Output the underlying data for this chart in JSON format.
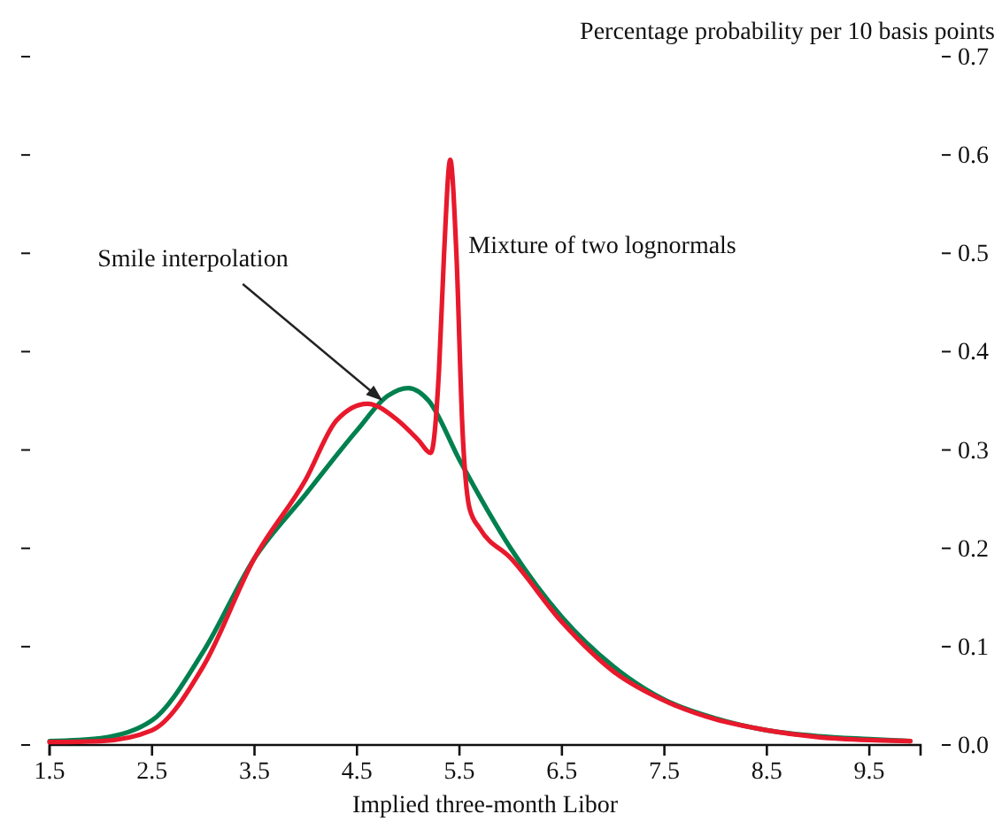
{
  "chart_data": {
    "type": "line",
    "xlabel": "Implied three-month Libor",
    "ylabel": "Percentage probability per 10 basis points",
    "xlim": [
      1.5,
      10
    ],
    "xticks": [
      1.5,
      2.5,
      3.5,
      4.5,
      5.5,
      6.5,
      7.5,
      8.5,
      9.5
    ],
    "ylim": [
      0,
      0.7
    ],
    "yticks": [
      {
        "value": 0,
        "label": "0.0"
      },
      0.1,
      0.2,
      0.3,
      0.4,
      0.5,
      0.6,
      0.7
    ],
    "grid": false,
    "marker": "none",
    "line_style": "solid",
    "annotations": [
      {
        "text": "Smile interpolation",
        "x": 4.75,
        "y": 0.35
      },
      {
        "text": "Mixture of two lognormals",
        "x": 5.45,
        "y": 0.5
      }
    ],
    "series": [
      {
        "color": "#00804f",
        "x": [
          1.5,
          2.0,
          2.5,
          3.0,
          3.5,
          4.0,
          4.5,
          4.8,
          5.0,
          5.2,
          5.5,
          6.0,
          6.5,
          7.0,
          7.5,
          8.0,
          8.5,
          9.0,
          9.5,
          9.9
        ],
        "values": [
          0.004,
          0.007,
          0.025,
          0.095,
          0.19,
          0.255,
          0.32,
          0.355,
          0.363,
          0.35,
          0.29,
          0.2,
          0.13,
          0.08,
          0.046,
          0.027,
          0.015,
          0.009,
          0.006,
          0.004
        ]
      },
      {
        "color": "#e8192c",
        "x": [
          1.5,
          2.0,
          2.5,
          3.0,
          3.5,
          4.0,
          4.3,
          4.6,
          4.9,
          5.1,
          5.22,
          5.3,
          5.35,
          5.41,
          5.47,
          5.53,
          5.6,
          5.7,
          6.0,
          6.5,
          7.0,
          7.5,
          8.0,
          8.5,
          9.0,
          9.5,
          9.9
        ],
        "values": [
          0.003,
          0.004,
          0.015,
          0.08,
          0.19,
          0.27,
          0.33,
          0.347,
          0.33,
          0.31,
          0.297,
          0.38,
          0.5,
          0.595,
          0.5,
          0.32,
          0.24,
          0.22,
          0.19,
          0.125,
          0.075,
          0.045,
          0.026,
          0.015,
          0.008,
          0.005,
          0.004
        ]
      }
    ]
  }
}
